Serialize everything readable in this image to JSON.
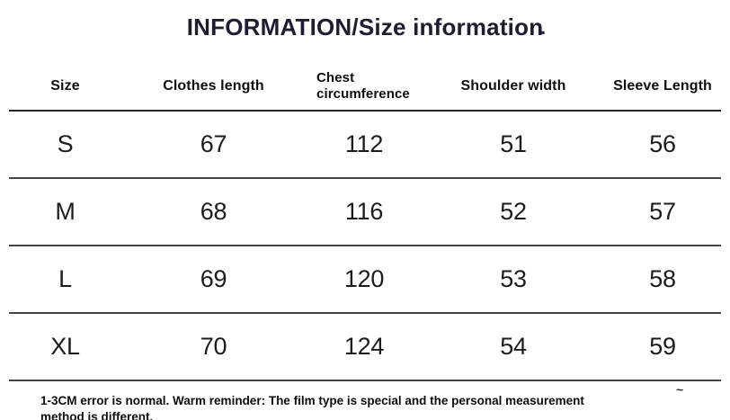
{
  "title": {
    "text": "INFORMATION/Size information",
    "dot": "·"
  },
  "table": {
    "columns": [
      "Size",
      "Clothes length",
      "Chest circumference",
      "Shoulder width",
      "Sleeve Length"
    ],
    "rows": [
      {
        "size": "S",
        "clothes_length": "67",
        "chest_circumference": "112",
        "shoulder_width": "51",
        "sleeve_length": "56"
      },
      {
        "size": "M",
        "clothes_length": "68",
        "chest_circumference": "116",
        "shoulder_width": "52",
        "sleeve_length": "57"
      },
      {
        "size": "L",
        "clothes_length": "69",
        "chest_circumference": "120",
        "shoulder_width": "53",
        "sleeve_length": "58"
      },
      {
        "size": "XL",
        "clothes_length": "70",
        "chest_circumference": "124",
        "shoulder_width": "54",
        "sleeve_length": "59"
      }
    ]
  },
  "footer": {
    "note": "1-3CM error is normal. Warm reminder: The film type is special and the personal measurement method is different.",
    "tilde": "~"
  },
  "colors": {
    "background": "#ffffff",
    "text": "#151515",
    "title_text": "#201d30",
    "divider": "#454545"
  },
  "chart_data": {
    "type": "table",
    "title": "INFORMATION/Size information",
    "columns": [
      "Size",
      "Clothes length",
      "Chest circumference",
      "Shoulder width",
      "Sleeve Length"
    ],
    "rows": [
      [
        "S",
        67,
        112,
        51,
        56
      ],
      [
        "M",
        68,
        116,
        52,
        57
      ],
      [
        "L",
        69,
        120,
        53,
        58
      ],
      [
        "XL",
        70,
        124,
        54,
        59
      ]
    ],
    "units": "cm",
    "note": "1-3CM error is normal. Warm reminder: The film type is special and the personal measurement method is different."
  }
}
